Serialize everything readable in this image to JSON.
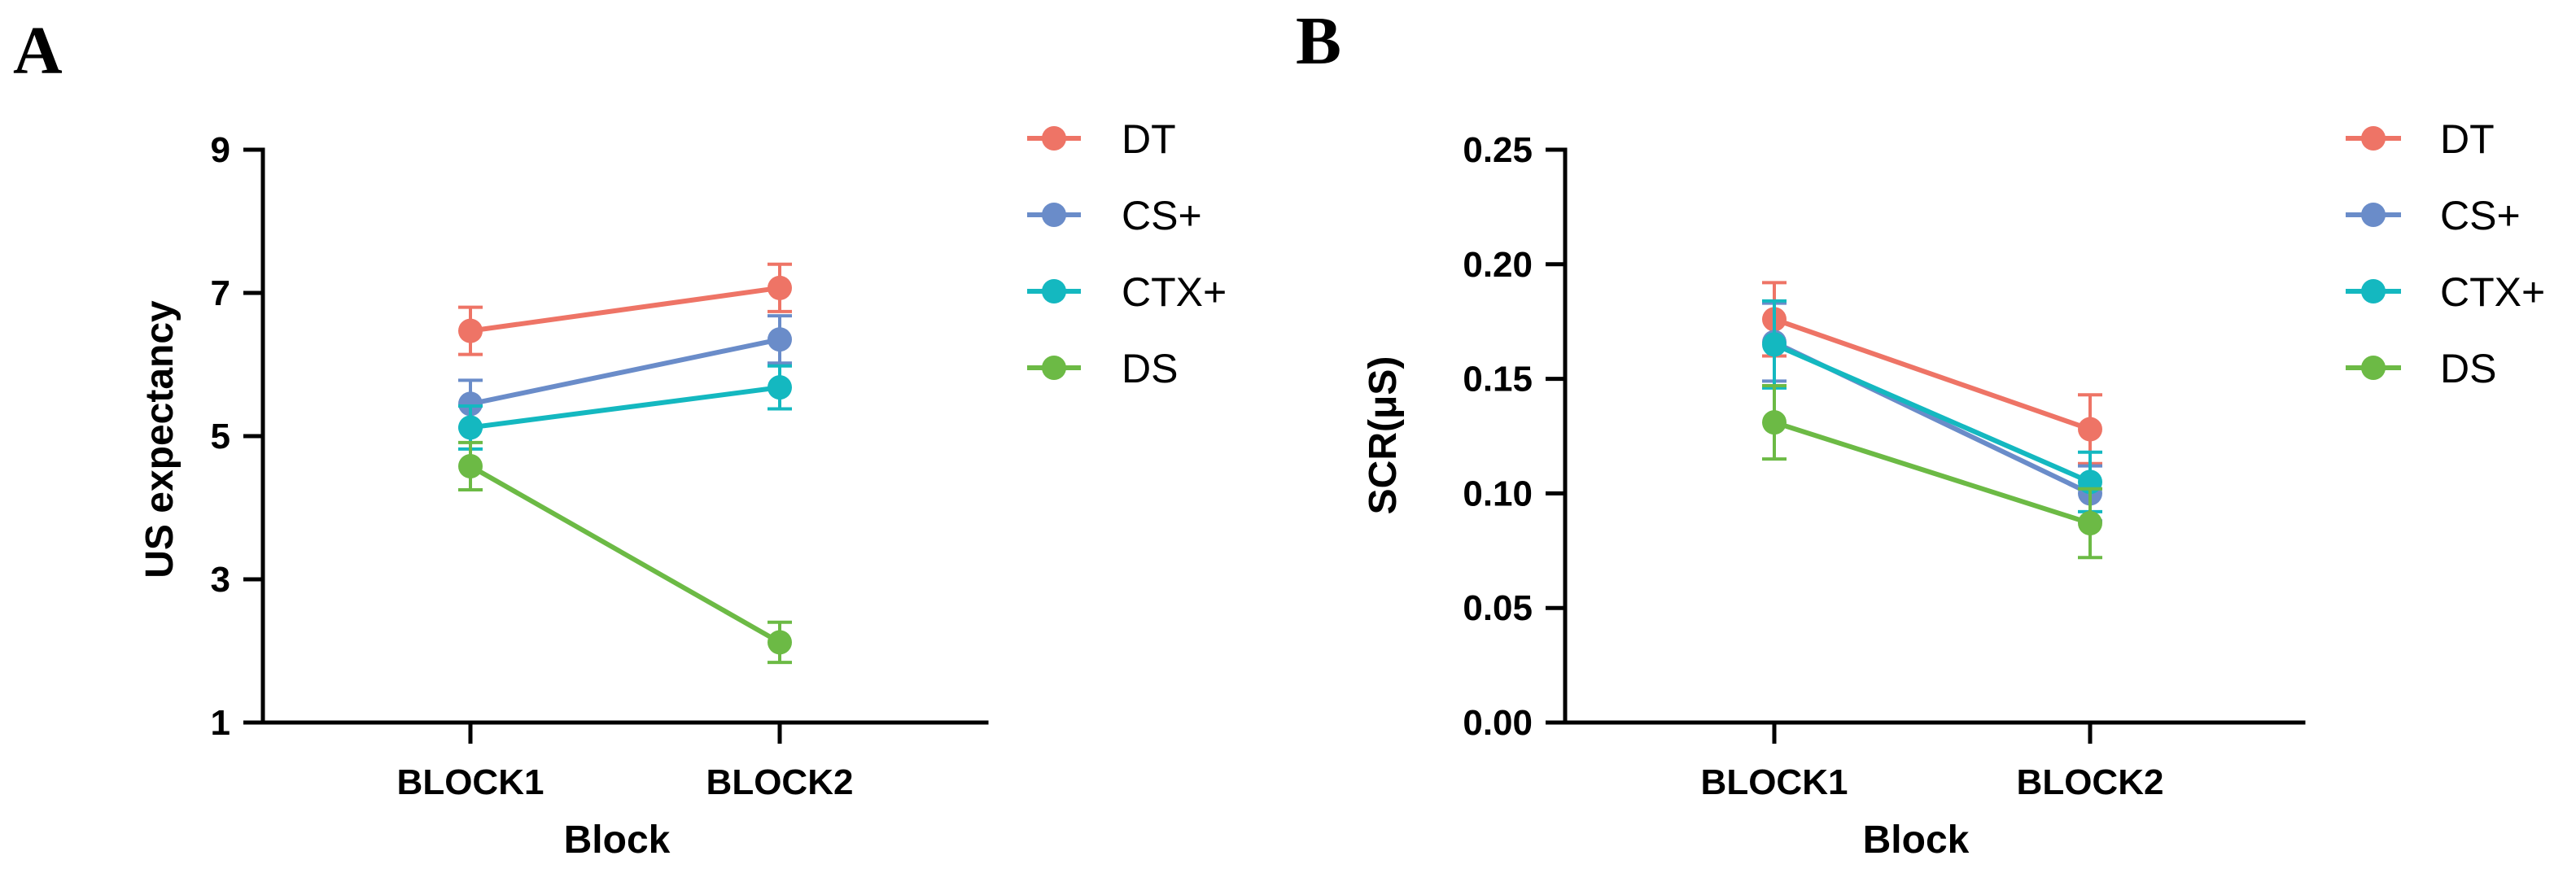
{
  "chart_data": [
    {
      "panel": "A",
      "type": "line",
      "xlabel": "Block",
      "ylabel": "US expectancy",
      "categories": [
        "BLOCK1",
        "BLOCK2"
      ],
      "ylim": [
        1,
        9
      ],
      "yticks": [
        1,
        3,
        5,
        7,
        9
      ],
      "ytick_labels": [
        "1",
        "3",
        "5",
        "7",
        "9"
      ],
      "legend_position": "top-right",
      "series": [
        {
          "name": "DT",
          "color": "#ee7466",
          "values": [
            6.47,
            7.07
          ],
          "errors": [
            0.33,
            0.33
          ]
        },
        {
          "name": "CS+",
          "color": "#6a8cc9",
          "values": [
            5.45,
            6.35
          ],
          "errors": [
            0.33,
            0.33
          ]
        },
        {
          "name": "CTX+",
          "color": "#14b8c0",
          "values": [
            5.12,
            5.68
          ],
          "errors": [
            0.3,
            0.3
          ]
        },
        {
          "name": "DS",
          "color": "#6cba45",
          "values": [
            4.58,
            2.12
          ],
          "errors": [
            0.33,
            0.28
          ]
        }
      ]
    },
    {
      "panel": "B",
      "type": "line",
      "xlabel": "Block",
      "ylabel": "SCR(μS)",
      "categories": [
        "BLOCK1",
        "BLOCK2"
      ],
      "ylim": [
        0,
        0.25
      ],
      "yticks": [
        0,
        0.05,
        0.1,
        0.15,
        0.2,
        0.25
      ],
      "ytick_labels": [
        "0.00",
        "0.05",
        "0.10",
        "0.15",
        "0.20",
        "0.25"
      ],
      "legend_position": "top-right",
      "series": [
        {
          "name": "DT",
          "color": "#ee7466",
          "values": [
            0.176,
            0.128
          ],
          "errors": [
            0.016,
            0.015
          ]
        },
        {
          "name": "CS+",
          "color": "#6a8cc9",
          "values": [
            0.166,
            0.1
          ],
          "errors": [
            0.017,
            0.012
          ]
        },
        {
          "name": "CTX+",
          "color": "#14b8c0",
          "values": [
            0.165,
            0.105
          ],
          "errors": [
            0.019,
            0.013
          ]
        },
        {
          "name": "DS",
          "color": "#6cba45",
          "values": [
            0.131,
            0.087
          ],
          "errors": [
            0.016,
            0.015
          ]
        }
      ]
    }
  ]
}
